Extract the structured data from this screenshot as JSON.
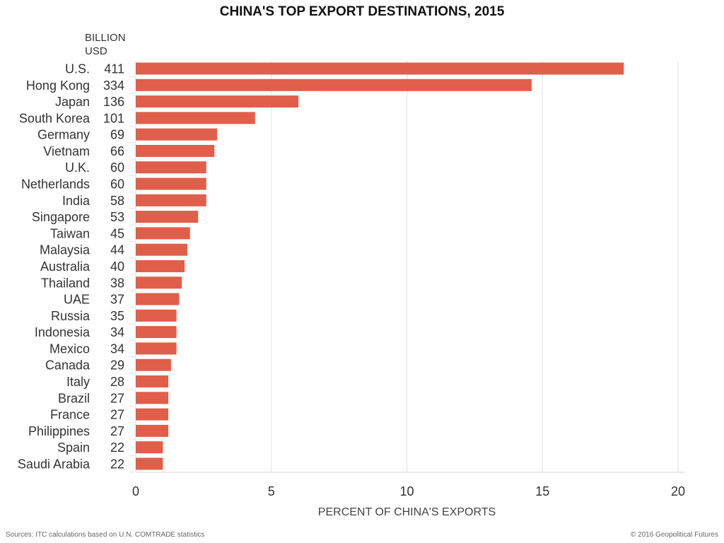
{
  "chart_data": {
    "type": "bar",
    "orientation": "horizontal",
    "title": "CHINA'S TOP EXPORT DESTINATIONS, 2015",
    "xlabel": "PERCENT OF CHINA'S EXPORTS",
    "value_column_label": "BILLION USD",
    "categories": [
      "U.S.",
      "Hong Kong",
      "Japan",
      "South Korea",
      "Germany",
      "Vietnam",
      "U.K.",
      "Netherlands",
      "India",
      "Singapore",
      "Taiwan",
      "Malaysia",
      "Australia",
      "Thailand",
      "UAE",
      "Russia",
      "Indonesia",
      "Mexico",
      "Canada",
      "Italy",
      "Brazil",
      "France",
      "Philippines",
      "Spain",
      "Saudi Arabia"
    ],
    "billion_usd": [
      "411",
      "334",
      "136",
      "101",
      "69",
      "66",
      "60",
      "60",
      "58",
      "53",
      "45",
      "44",
      "40",
      "38",
      "37",
      "35",
      "34",
      "34",
      "29",
      "28",
      "27",
      "27",
      "27",
      "22",
      "22"
    ],
    "values": [
      18.0,
      14.6,
      6.0,
      4.4,
      3.0,
      2.9,
      2.6,
      2.6,
      2.6,
      2.3,
      2.0,
      1.9,
      1.8,
      1.7,
      1.6,
      1.5,
      1.5,
      1.5,
      1.3,
      1.2,
      1.2,
      1.2,
      1.2,
      1.0,
      1.0
    ],
    "xlim": [
      0,
      20
    ],
    "xticks": [
      "0",
      "5",
      "10",
      "15",
      "20"
    ],
    "grid": true,
    "bar_color": "#df5f4b"
  },
  "footer": {
    "source": "Sources: ITC calculations based on U.N. COMTRADE statistics",
    "credit": "© 2016 Geopolitical Futures"
  }
}
